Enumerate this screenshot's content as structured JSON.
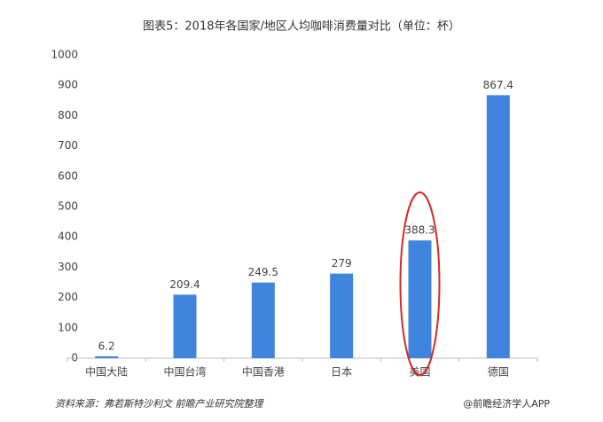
{
  "chart_data": {
    "type": "bar",
    "title": "图表5：2018年各国家/地区人均咖啡消费量对比（单位：杯）",
    "categories": [
      "中国大陆",
      "中国台湾",
      "中国香港",
      "日本",
      "美国",
      "德国"
    ],
    "values": [
      6.2,
      209.4,
      249.5,
      279,
      388.3,
      867.4
    ],
    "color": "#3f85dd",
    "ylim": [
      0,
      1000
    ],
    "yticks": [
      0,
      100,
      200,
      300,
      400,
      500,
      600,
      700,
      800,
      900,
      1000
    ],
    "grid": false
  },
  "source": "资料来源：弗若斯特沙利文  前瞻产业研究院整理",
  "credit": "@前瞻经济学人APP"
}
